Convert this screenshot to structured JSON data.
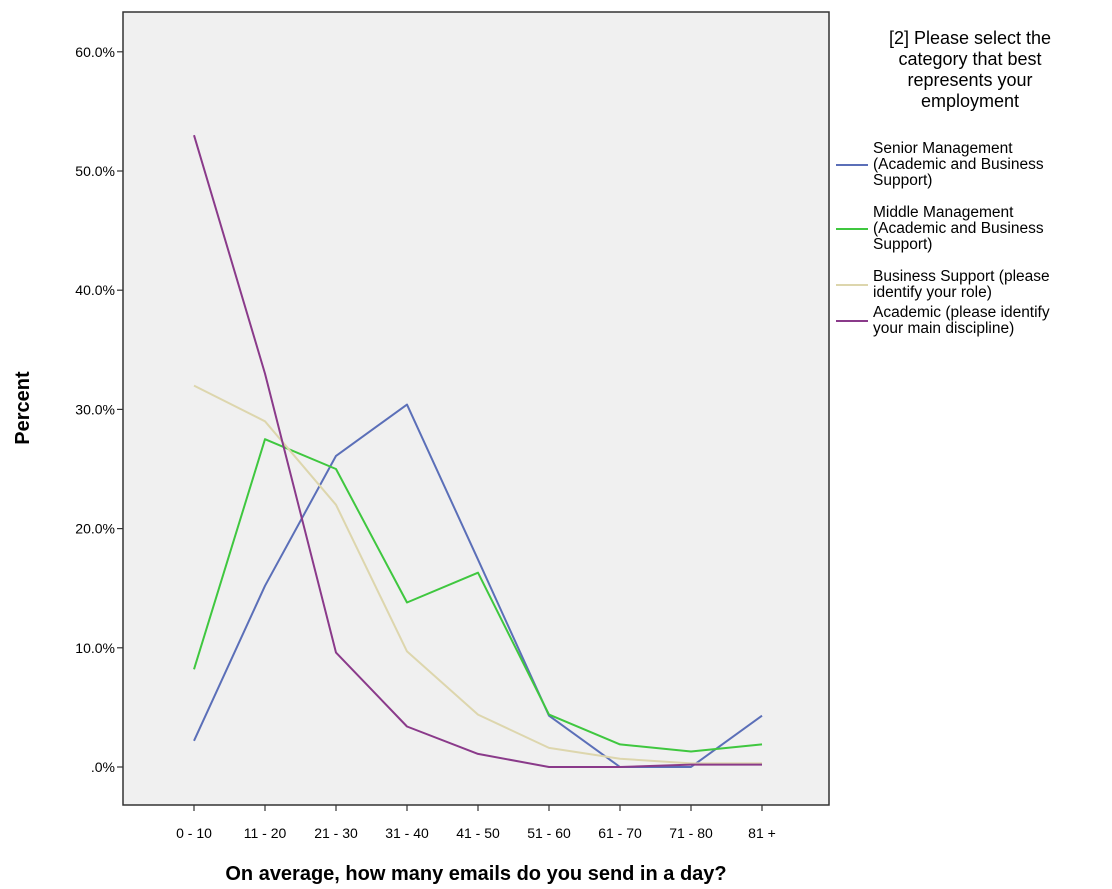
{
  "chart_data": {
    "type": "line",
    "xlabel": "On average, how many emails do you send in a day?",
    "ylabel": "Percent",
    "categories": [
      "0 - 10",
      "11 - 20",
      "21 - 30",
      "31 - 40",
      "41 - 50",
      "51 - 60",
      "61 - 70",
      "71 - 80",
      "81 +"
    ],
    "ylim": [
      0,
      60
    ],
    "yticks": [
      0,
      10,
      20,
      30,
      40,
      50,
      60
    ],
    "ytick_labels": [
      ".0%",
      "10.0%",
      "20.0%",
      "30.0%",
      "40.0%",
      "50.0%",
      "60.0%"
    ],
    "grid": false,
    "legend_position": "right",
    "legend_title": "[2] Please select the category that best represents your employment",
    "plot_background": "#f0f0f0",
    "series": [
      {
        "name": "Senior Management (Academic and Business Support)",
        "color": "#5b6fb8",
        "values": [
          2.2,
          15.2,
          26.1,
          30.4,
          17.4,
          4.3,
          0.0,
          0.0,
          4.3
        ]
      },
      {
        "name": "Middle Management (Academic and Business Support)",
        "color": "#3fc73f",
        "values": [
          8.2,
          27.5,
          25.0,
          13.8,
          16.3,
          4.4,
          1.9,
          1.3,
          1.9
        ]
      },
      {
        "name": "Business Support (please identify your role)",
        "color": "#ddd6ad",
        "values": [
          32.0,
          29.0,
          22.0,
          9.7,
          4.4,
          1.6,
          0.7,
          0.3,
          0.3
        ]
      },
      {
        "name": "Academic (please identify your main discipline)",
        "color": "#8a3a8a",
        "values": [
          53.0,
          33.0,
          9.6,
          3.4,
          1.1,
          0.0,
          0.0,
          0.2,
          0.2
        ]
      }
    ]
  }
}
